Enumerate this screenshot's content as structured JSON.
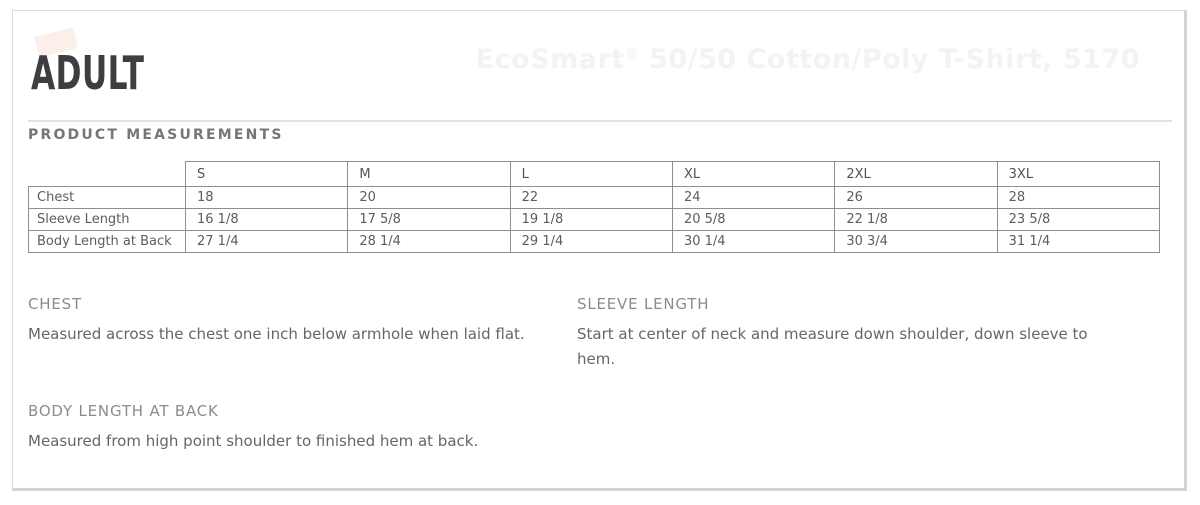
{
  "page": {
    "section_label": "ADULT",
    "product_title": "EcoSmart® 50/50 Cotton/Poly T-Shirt, 5170",
    "measurements_heading": "PRODUCT MEASUREMENTS"
  },
  "table": {
    "sizes": [
      "S",
      "M",
      "L",
      "XL",
      "2XL",
      "3XL"
    ],
    "rows": [
      {
        "label": "Chest",
        "values": [
          "18",
          "20",
          "22",
          "24",
          "26",
          "28"
        ]
      },
      {
        "label": "Sleeve Length",
        "values": [
          "16 1/8",
          "17 5/8",
          "19 1/8",
          "20 5/8",
          "22 1/8",
          "23 5/8"
        ]
      },
      {
        "label": "Body Length at Back",
        "values": [
          "27 1/4",
          "28 1/4",
          "29 1/4",
          "30 1/4",
          "30 3/4",
          "31 1/4"
        ]
      }
    ]
  },
  "definitions": [
    {
      "term": "CHEST",
      "description": "Measured across the chest one inch below armhole when laid flat."
    },
    {
      "term": "SLEEVE LENGTH",
      "description": "Start at center of neck and measure down shoulder, down sleeve to hem."
    },
    {
      "term": "BODY LENGTH AT BACK",
      "description": "Measured from high point shoulder to finished hem at back."
    }
  ],
  "colors": {
    "heading_text": "#3e3e42",
    "faint_title": "#f3f3f3",
    "table_border": "#8f8f8f",
    "body_text": "#66666a",
    "frame_border": "#d4d4d4",
    "watermark_pink": "#fcefe9"
  }
}
